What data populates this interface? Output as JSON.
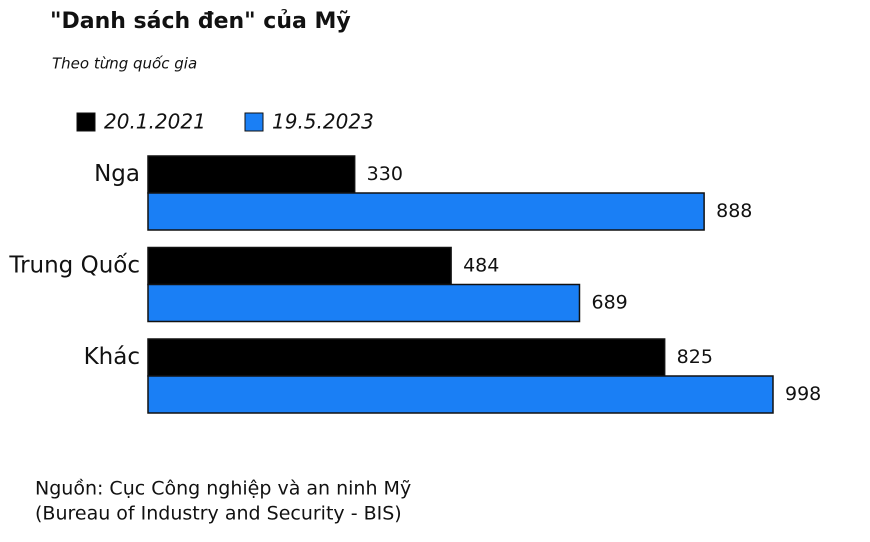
{
  "chart_data": {
    "type": "bar",
    "orientation": "horizontal",
    "title": "\"Danh sách đen\" của Mỹ",
    "subtitle": "Theo từng quốc gia",
    "categories": [
      "Nga",
      "Trung Quốc",
      "Khác"
    ],
    "series": [
      {
        "name": "20.1.2021",
        "color": "#000000",
        "values": [
          330,
          484,
          825
        ]
      },
      {
        "name": "19.5.2023",
        "color": "#1a7ff5",
        "values": [
          888,
          689,
          998
        ]
      }
    ],
    "source": [
      "Nguồn: Cục Công nghiệp và an ninh Mỹ",
      "(Bureau of Industry and Security - BIS)"
    ]
  }
}
